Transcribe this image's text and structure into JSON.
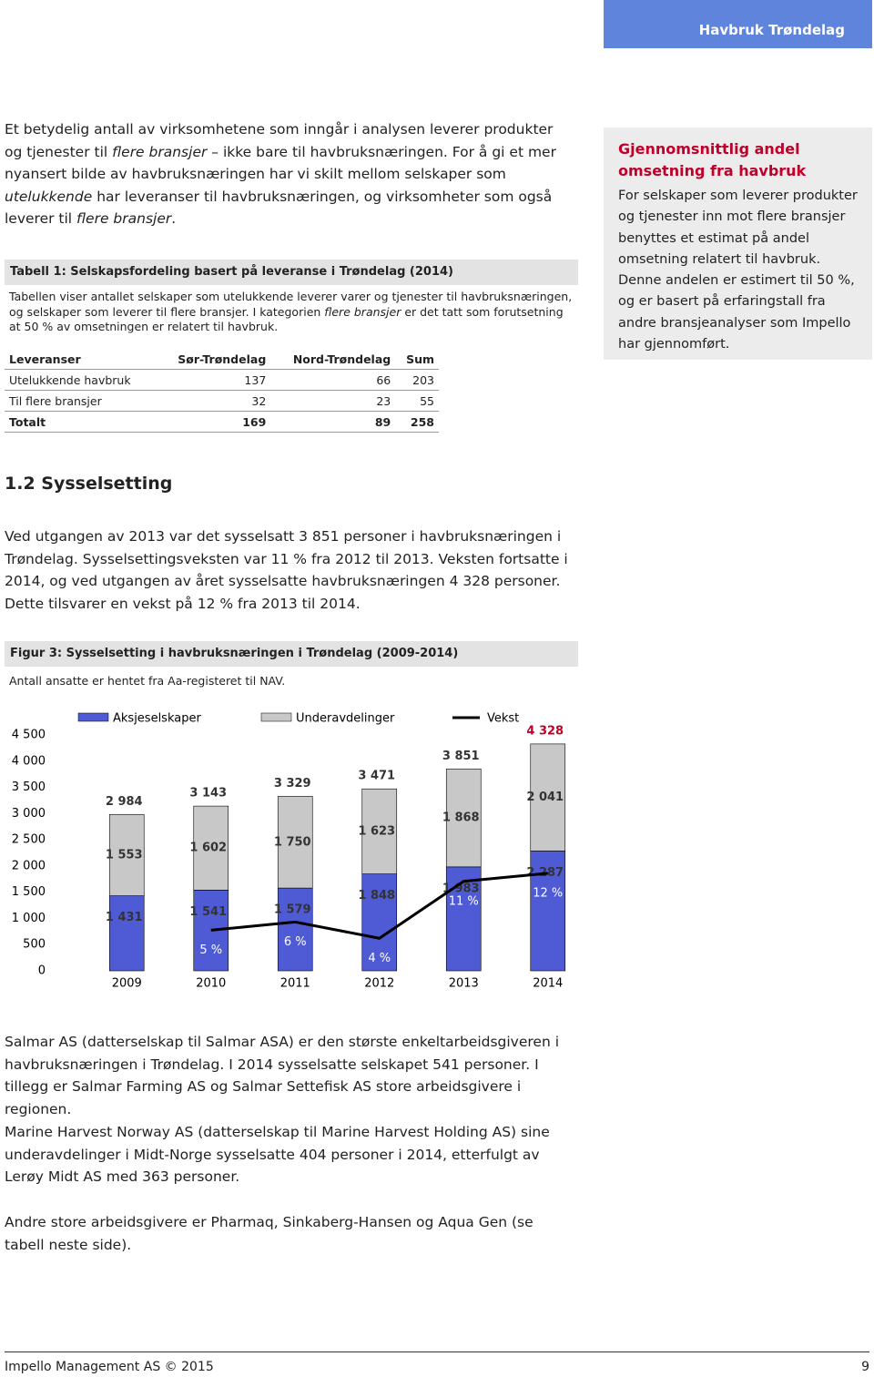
{
  "header": {
    "section": "Havbruk Trøndelag"
  },
  "intro": [
    "Et betydelig antall av virksomhetene som inngår i analysen leverer produkter og tjenester til ",
    "flere bransjer",
    " – ikke bare til havbruksnæringen. For å gi et mer nyansert bilde av havbruksnæringen har vi skilt mellom selskaper som ",
    "utelukkende",
    " har leveranser til havbruksnæringen, og virksomheter som også leverer til ",
    "flere bransjer",
    "."
  ],
  "table": {
    "caption": "Tabell 1: Selskapsfordeling basert på leveranse i Trøndelag (2014)",
    "note": [
      "Tabellen viser antallet selskaper som utelukkende leverer varer og tjenester til havbruksnæringen, og selskaper som leverer til flere bransjer. I kategorien ",
      "flere bransjer",
      " er det tatt som forutsetning at 50 % av omsetningen er relatert til havbruk."
    ],
    "header": [
      "Leveranser",
      "Sør-Trøndelag",
      "Nord-Trøndelag",
      "Sum"
    ],
    "rows": [
      [
        "Utelukkende havbruk",
        137,
        66,
        203
      ],
      [
        "Til flere bransjer",
        32,
        23,
        55
      ],
      [
        "Totalt",
        169,
        89,
        258
      ]
    ]
  },
  "sidebar": {
    "title": "Gjennomsnittlig andel omsetning fra havbruk",
    "text": "For selskaper som leverer produkter og tjenester inn mot flere bransjer benyttes et estimat på andel omsetning relatert til havbruk. Denne andelen er estimert til 50 %, og er basert på erfaringstall fra andre bransjeanalyser som Impello har gjennomført."
  },
  "section": {
    "heading": "1.2 Sysselsetting",
    "text": "Ved utgangen av 2013 var det sysselsatt 3 851 personer i havbruksnæringen i Trøndelag. Sysselsettingsveksten var 11 % fra 2012 til 2013. Veksten fortsatte i 2014, og ved utgangen av året sysselsatte havbruksnæringen 4 328 personer. Dette tilsvarer en vekst på 12 % fra 2013 til 2014."
  },
  "chart_data": {
    "type": "stacked-bar-line",
    "title": "Figur 3: Sysselsetting i havbruksnæringen i Trøndelag (2009-2014)",
    "subtitle": "Antall ansatte er hentet fra Aa-registeret til NAV.",
    "categories": [
      "2009",
      "2010",
      "2011",
      "2012",
      "2013",
      "2014"
    ],
    "series": [
      {
        "name": "Aksjeselskaper",
        "color": "#4f5bd5",
        "values": [
          1431,
          1541,
          1579,
          1848,
          1983,
          2287
        ],
        "value_labels": [
          "1 431",
          "1 541",
          "1 579",
          "1 848",
          "1 983",
          "2 287"
        ]
      },
      {
        "name": "Underavdelinger",
        "color": "#c8c8c8",
        "values": [
          1553,
          1602,
          1750,
          1623,
          1868,
          2041
        ],
        "value_labels": [
          "1 553",
          "1 602",
          "1 750",
          "1 623",
          "1 868",
          "2 041"
        ]
      },
      {
        "name": "Vekst",
        "color": "#000000",
        "axis": "y2",
        "values": [
          null,
          5,
          6,
          4,
          11,
          12
        ],
        "value_labels": [
          null,
          "5 %",
          "6 %",
          "4 %",
          "11 %",
          "12 %"
        ]
      }
    ],
    "total_labels": [
      "2 984",
      "3 143",
      "3 329",
      "3 471",
      "3 851",
      "4 328"
    ],
    "ylim": [
      0,
      4500
    ],
    "yticks": [
      0,
      500,
      {
        "value": 1000,
        "label": "1 000"
      },
      {
        "value": 1500,
        "label": "1 500"
      },
      {
        "value": 2000,
        "label": "2 000"
      },
      {
        "value": 2500,
        "label": "2 500"
      },
      {
        "value": 3000,
        "label": "3 000"
      },
      {
        "value": 3500,
        "label": "3 500"
      },
      {
        "value": 4000,
        "label": "4 000"
      },
      {
        "value": 4500,
        "label": "4 500"
      }
    ],
    "y2lim": [
      0,
      29
    ],
    "grid": false,
    "legend": "top"
  },
  "paragraphs": [
    "Salmar AS (datterselskap til Salmar ASA) er den største enkeltarbeidsgiveren i havbruksnæringen i Trøndelag. I 2014 sysselsatte selskapet 541 personer. I tillegg er Salmar Farming AS og Salmar Settefisk AS store arbeidsgivere i regionen.",
    "Marine Harvest Norway AS (datterselskap til Marine Harvest Holding AS) sine underavdelinger i Midt-Norge sysselsatte 404 personer i 2014, etterfulgt av Lerøy Midt AS med 363 personer.",
    "Andre store arbeidsgivere er Pharmaq, Sinkaberg-Hansen og Aqua Gen (se tabell neste side)."
  ],
  "footer": {
    "company": "Impello Management AS © 2015",
    "page": "9"
  }
}
